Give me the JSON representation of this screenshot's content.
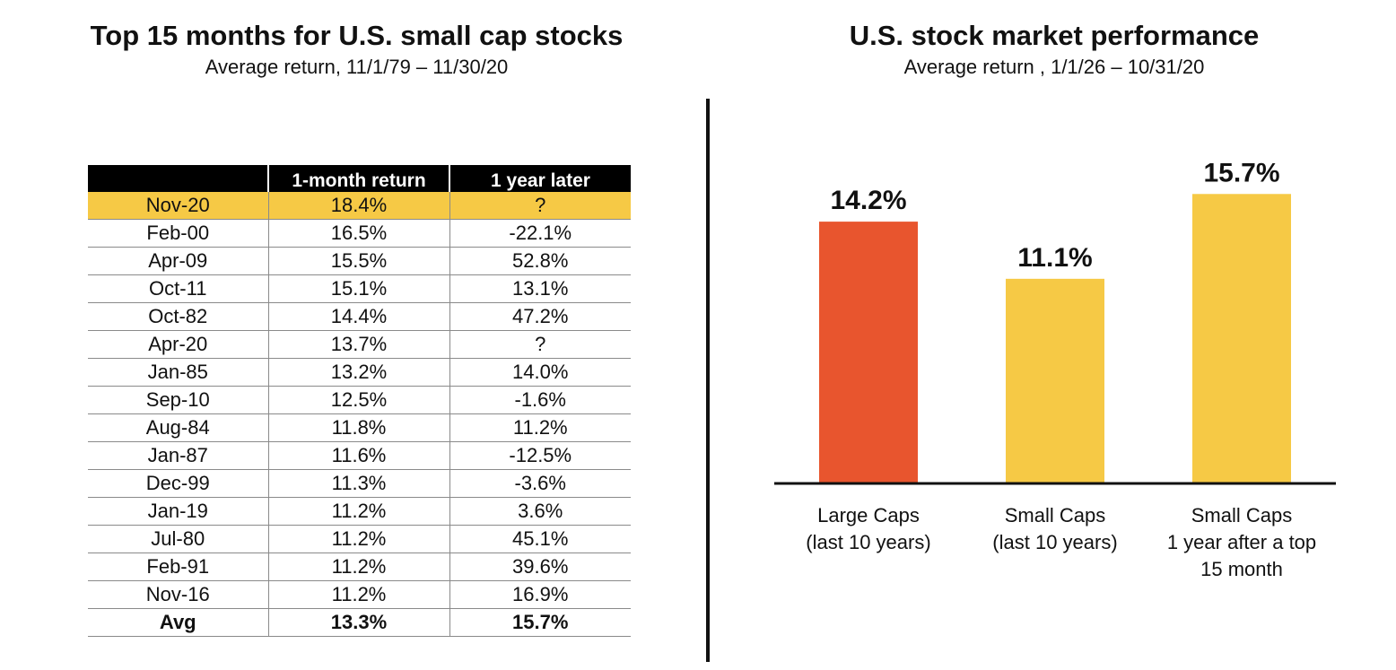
{
  "left": {
    "title": "Top 15 months for U.S. small cap stocks",
    "subtitle": "Average return, 11/1/79 – 11/30/20"
  },
  "right": {
    "title": "U.S. stock market performance",
    "subtitle": "Average return , 1/1/26 – 10/31/20"
  },
  "colors": {
    "highlight": "#f6c945",
    "large_caps_bar": "#e8552e",
    "small_caps_bar": "#f6c945",
    "header_bg": "#000000"
  },
  "table": {
    "headers": [
      "",
      "1-month return",
      "1 year later"
    ],
    "rows": [
      {
        "month": "Nov-20",
        "one_month": "18.4%",
        "one_year": "?",
        "highlight": true
      },
      {
        "month": "Feb-00",
        "one_month": "16.5%",
        "one_year": "-22.1%"
      },
      {
        "month": "Apr-09",
        "one_month": "15.5%",
        "one_year": "52.8%"
      },
      {
        "month": "Oct-11",
        "one_month": "15.1%",
        "one_year": "13.1%"
      },
      {
        "month": "Oct-82",
        "one_month": "14.4%",
        "one_year": "47.2%"
      },
      {
        "month": "Apr-20",
        "one_month": "13.7%",
        "one_year": "?"
      },
      {
        "month": "Jan-85",
        "one_month": "13.2%",
        "one_year": "14.0%"
      },
      {
        "month": "Sep-10",
        "one_month": "12.5%",
        "one_year": "-1.6%"
      },
      {
        "month": "Aug-84",
        "one_month": "11.8%",
        "one_year": "11.2%"
      },
      {
        "month": "Jan-87",
        "one_month": "11.6%",
        "one_year": "-12.5%"
      },
      {
        "month": "Dec-99",
        "one_month": "11.3%",
        "one_year": "-3.6%"
      },
      {
        "month": "Jan-19",
        "one_month": "11.2%",
        "one_year": "3.6%"
      },
      {
        "month": "Jul-80",
        "one_month": "11.2%",
        "one_year": "45.1%"
      },
      {
        "month": "Feb-91",
        "one_month": "11.2%",
        "one_year": "39.6%"
      },
      {
        "month": "Nov-16",
        "one_month": "11.2%",
        "one_year": "16.9%"
      }
    ],
    "avg": {
      "month": "Avg",
      "one_month": "13.3%",
      "one_year": "15.7%"
    }
  },
  "chart_data": {
    "type": "bar",
    "title": "U.S. stock market performance",
    "subtitle": "Average return , 1/1/26 – 10/31/20",
    "categories": [
      [
        "Large Caps",
        "(last 10 years)"
      ],
      [
        "Small Caps",
        "(last 10 years)"
      ],
      [
        "Small Caps",
        "1 year after a top",
        "15 month"
      ]
    ],
    "values": [
      14.2,
      11.1,
      15.7
    ],
    "data_labels": [
      "14.2%",
      "11.1%",
      "15.7%"
    ],
    "unit": "%",
    "grid": false,
    "legend": "none",
    "ylim": [
      0,
      18
    ]
  }
}
